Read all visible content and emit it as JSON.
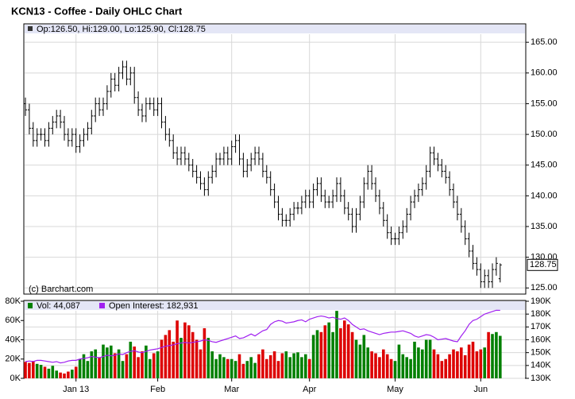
{
  "chart_data": [
    {
      "type": "ohlc",
      "title": "KCN13 - Coffee - Daily OHLC Chart",
      "legend": "Op:126.50, Hi:129.00, Lo:125.90, Cl:128.75",
      "credit": "(c) Barchart.com",
      "last_label": "128.75",
      "color": "#000000",
      "grid": true,
      "ylim": [
        124,
        168
      ],
      "yticks": [
        {
          "value": 125,
          "label": "125.00"
        },
        {
          "value": 130,
          "label": "130.00"
        },
        {
          "value": 135,
          "label": "135.00"
        },
        {
          "value": 140,
          "label": "140.00"
        },
        {
          "value": 145,
          "label": "145.00"
        },
        {
          "value": 150,
          "label": "150.00"
        },
        {
          "value": 155,
          "label": "155.00"
        },
        {
          "value": 160,
          "label": "160.00"
        },
        {
          "value": 165,
          "label": "165.00"
        }
      ],
      "xticks": [
        {
          "value": 13,
          "label": "Jan 13"
        },
        {
          "value": 34,
          "label": "Feb"
        },
        {
          "value": 53,
          "label": "Mar"
        },
        {
          "value": 73,
          "label": "Apr"
        },
        {
          "value": 95,
          "label": "May"
        },
        {
          "value": 117,
          "label": "Jun"
        }
      ],
      "open": [
        155,
        154,
        151,
        149,
        150,
        150,
        149,
        151,
        152,
        153,
        152,
        150,
        149,
        150,
        148,
        149,
        150,
        151,
        153,
        155,
        154,
        155,
        157,
        159,
        158,
        160,
        161,
        159,
        160,
        156,
        154,
        153,
        155,
        155,
        154,
        155,
        152,
        150,
        149,
        147,
        146,
        147,
        146,
        145,
        144,
        143,
        142,
        141,
        143,
        144,
        146,
        146,
        147,
        146,
        148,
        149,
        146,
        144,
        145,
        146,
        147,
        146,
        144,
        143,
        141,
        139,
        137,
        136,
        136,
        137,
        138,
        138,
        139,
        140,
        139,
        141,
        142,
        140,
        139,
        139,
        140,
        142,
        140,
        138,
        137,
        135,
        137,
        139,
        142,
        144,
        142,
        140,
        138,
        136,
        134,
        133,
        133,
        134,
        135,
        137,
        139,
        140,
        141,
        142,
        144,
        147,
        146,
        145,
        144,
        143,
        141,
        139,
        137,
        135,
        133,
        131,
        129,
        128,
        126,
        127,
        126,
        128,
        126.5
      ],
      "high": [
        156,
        155,
        152,
        151,
        151,
        151,
        152,
        153,
        154,
        154,
        153,
        151,
        151,
        151,
        150,
        151,
        152,
        154,
        156,
        156,
        156,
        158,
        160,
        160,
        161,
        162,
        162,
        161,
        161,
        157,
        155,
        156,
        156,
        156,
        156,
        156,
        153,
        151,
        150,
        148,
        148,
        148,
        147,
        146,
        145,
        144,
        143,
        144,
        145,
        147,
        147,
        148,
        148,
        149,
        150,
        150,
        147,
        146,
        147,
        148,
        148,
        147,
        145,
        144,
        142,
        140,
        138,
        137,
        138,
        139,
        139,
        140,
        141,
        141,
        142,
        143,
        143,
        141,
        140,
        141,
        143,
        143,
        141,
        139,
        138,
        138,
        140,
        143,
        145,
        145,
        143,
        141,
        139,
        137,
        135,
        134,
        135,
        136,
        138,
        140,
        141,
        142,
        143,
        145,
        148,
        148,
        147,
        146,
        145,
        144,
        142,
        140,
        138,
        136,
        134,
        132,
        130,
        129,
        128,
        128,
        129,
        130,
        129
      ],
      "low": [
        153,
        150,
        148,
        148,
        149,
        148,
        148,
        150,
        151,
        151,
        149,
        148,
        148,
        147,
        147,
        148,
        149,
        150,
        152,
        153,
        153,
        154,
        156,
        157,
        157,
        159,
        158,
        158,
        155,
        153,
        152,
        152,
        154,
        153,
        153,
        151,
        149,
        148,
        146,
        145,
        145,
        145,
        144,
        143,
        142,
        141,
        140,
        140,
        142,
        143,
        145,
        145,
        145,
        145,
        147,
        145,
        143,
        143,
        144,
        145,
        145,
        143,
        142,
        140,
        138,
        136,
        135,
        135,
        135,
        136,
        137,
        137,
        138,
        138,
        138,
        140,
        139,
        138,
        138,
        138,
        139,
        139,
        137,
        136,
        134,
        134,
        136,
        138,
        141,
        141,
        139,
        137,
        135,
        133,
        132,
        132,
        132,
        133,
        134,
        136,
        138,
        139,
        140,
        141,
        143,
        145,
        144,
        143,
        142,
        140,
        138,
        136,
        134,
        132,
        130,
        128,
        127,
        125,
        125,
        125,
        125,
        127,
        125.9
      ],
      "close": [
        154,
        151,
        149,
        150,
        150,
        149,
        151,
        152,
        153,
        152,
        150,
        149,
        150,
        148,
        149,
        150,
        151,
        153,
        155,
        154,
        155,
        157,
        159,
        158,
        160,
        161,
        159,
        160,
        156,
        154,
        153,
        155,
        155,
        154,
        155,
        152,
        150,
        149,
        147,
        146,
        147,
        146,
        145,
        144,
        143,
        142,
        141,
        143,
        144,
        146,
        146,
        147,
        146,
        148,
        149,
        146,
        144,
        145,
        146,
        147,
        146,
        144,
        143,
        141,
        139,
        137,
        136,
        136,
        137,
        138,
        138,
        139,
        140,
        139,
        141,
        142,
        140,
        139,
        139,
        140,
        142,
        140,
        138,
        137,
        135,
        137,
        139,
        142,
        144,
        142,
        140,
        138,
        136,
        134,
        133,
        133,
        134,
        135,
        137,
        139,
        140,
        141,
        142,
        144,
        147,
        146,
        145,
        144,
        143,
        141,
        139,
        137,
        135,
        133,
        131,
        129,
        128,
        126,
        127,
        126,
        128,
        129,
        128.75
      ]
    },
    {
      "type": "bar",
      "color_up": "#008000",
      "color_down": "#dd0000",
      "grid": true,
      "ylim": [
        0,
        80000
      ],
      "yticks": [
        {
          "value": 0,
          "label": "0K"
        },
        {
          "value": 20000,
          "label": "20K"
        },
        {
          "value": 40000,
          "label": "40K"
        },
        {
          "value": 60000,
          "label": "60K"
        },
        {
          "value": 80000,
          "label": "80K"
        }
      ],
      "y2lim": [
        130000,
        190000
      ],
      "y2ticks": [
        {
          "value": 130000,
          "label": "130K"
        },
        {
          "value": 140000,
          "label": "140K"
        },
        {
          "value": 150000,
          "label": "150K"
        },
        {
          "value": 160000,
          "label": "160K"
        },
        {
          "value": 170000,
          "label": "170K"
        },
        {
          "value": 180000,
          "label": "180K"
        },
        {
          "value": 190000,
          "label": "190K"
        }
      ],
      "series": [
        {
          "name": "Vol: 44,087",
          "color": "#008000",
          "values": [
            17000,
            16000,
            18000,
            15000,
            14000,
            12000,
            10000,
            13000,
            8000,
            6000,
            5000,
            7000,
            9000,
            12000,
            20000,
            25000,
            18000,
            28000,
            30000,
            22000,
            35000,
            32000,
            34000,
            26000,
            30000,
            18000,
            25000,
            38000,
            33000,
            22000,
            28000,
            34000,
            20000,
            26000,
            28000,
            40000,
            45000,
            50000,
            38000,
            60000,
            42000,
            58000,
            55000,
            48000,
            40000,
            30000,
            52000,
            42000,
            28000,
            20000,
            25000,
            22000,
            20000,
            20000,
            18000,
            25000,
            15000,
            18000,
            22000,
            16000,
            25000,
            30000,
            20000,
            24000,
            28000,
            18000,
            26000,
            28000,
            22000,
            26000,
            27000,
            22000,
            25000,
            20000,
            45000,
            50000,
            48000,
            55000,
            58000,
            48000,
            70000,
            52000,
            60000,
            56000,
            48000,
            40000,
            35000,
            45000,
            32000,
            28000,
            26000,
            22000,
            30000,
            25000,
            20000,
            18000,
            35000,
            25000,
            22000,
            20000,
            38000,
            32000,
            30000,
            40000,
            40000,
            30000,
            25000,
            18000,
            20000,
            25000,
            30000,
            28000,
            32000,
            24000,
            35000,
            38000,
            28000,
            30000,
            32000,
            48000,
            46000,
            48000,
            44087
          ]
        },
        {
          "name": "Open Interest: 182,931",
          "color": "#a020f0",
          "axis": "y2",
          "values": [
            143000,
            143500,
            143000,
            144000,
            144000,
            143500,
            143000,
            142500,
            143000,
            142000,
            142500,
            143500,
            144000,
            144000,
            145000,
            145500,
            146000,
            147000,
            146500,
            146000,
            147000,
            148000,
            147500,
            148000,
            149000,
            148500,
            150000,
            151000,
            151500,
            150500,
            150000,
            151000,
            152000,
            152500,
            153000,
            154000,
            155000,
            155500,
            156000,
            157000,
            157500,
            158000,
            157500,
            158000,
            158500,
            159000,
            160000,
            159500,
            158500,
            158000,
            159000,
            160000,
            161000,
            162000,
            163000,
            161000,
            161500,
            163000,
            164500,
            163000,
            165000,
            167000,
            168000,
            172000,
            174000,
            175000,
            174500,
            173000,
            173500,
            174000,
            175000,
            175500,
            174000,
            176000,
            177000,
            178000,
            178500,
            178000,
            177000,
            177500,
            176500,
            176000,
            177000,
            175000,
            172000,
            170000,
            168000,
            168500,
            167000,
            166000,
            165000,
            164000,
            165000,
            165500,
            166000,
            166000,
            166500,
            167000,
            166000,
            165000,
            163000,
            162000,
            163000,
            164000,
            163500,
            162000,
            160000,
            160500,
            161000,
            160000,
            159000,
            158500,
            163000,
            167000,
            172000,
            175000,
            176000,
            178000,
            180000,
            181000,
            182000,
            183000,
            182931
          ]
        }
      ]
    }
  ]
}
